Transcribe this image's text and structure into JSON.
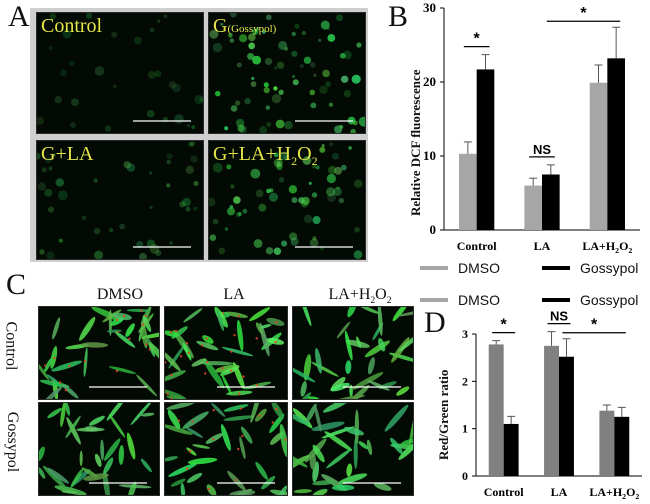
{
  "panels": {
    "A": {
      "letter": "A",
      "images": [
        {
          "label": "Control",
          "sublabel": "",
          "intensity": 0.15
        },
        {
          "label": "G",
          "sublabel": "(Gossypol)",
          "intensity": 0.9
        },
        {
          "label": "G+LA",
          "sublabel": "",
          "intensity": 0.35
        },
        {
          "label": "G+LA+H2O2",
          "sublabel": "",
          "intensity": 0.75
        }
      ]
    },
    "B": {
      "letter": "B"
    },
    "C": {
      "letter": "C",
      "col_headers": [
        "DMSO",
        "LA",
        "LA+H2O2"
      ],
      "row_headers": [
        "Control",
        "Gossypol"
      ]
    },
    "D": {
      "letter": "D"
    }
  },
  "legend": {
    "dmso": "DMSO",
    "gossypol": "Gossypol",
    "dmso_color": "#a6a6a6",
    "gossypol_color": "#000000"
  },
  "chart_data": [
    {
      "type": "bar",
      "panel": "B",
      "categories": [
        "Control",
        "LA",
        "LA+H2O2"
      ],
      "series": [
        {
          "name": "DMSO",
          "values": [
            10.3,
            6.0,
            19.9
          ],
          "errors": [
            1.6,
            1.0,
            2.4
          ],
          "color": "#a6a6a6"
        },
        {
          "name": "Gossypol",
          "values": [
            21.7,
            7.5,
            23.2
          ],
          "errors": [
            2.0,
            1.3,
            4.2
          ],
          "color": "#000000"
        }
      ],
      "ylabel": "Relative DCF fluorescence",
      "ylim": [
        0,
        30
      ],
      "yticks": [
        0,
        10,
        20,
        30
      ],
      "annotations": [
        {
          "text": "*",
          "from": [
            0,
            0
          ],
          "to": [
            0,
            1
          ]
        },
        {
          "text": "NS",
          "from": [
            1,
            0
          ],
          "to": [
            1,
            1
          ]
        },
        {
          "text": "*",
          "from": [
            1,
            1
          ],
          "to": [
            2,
            1
          ]
        }
      ]
    },
    {
      "type": "bar",
      "panel": "D",
      "categories": [
        "Control",
        "LA",
        "LA+H2O2"
      ],
      "series": [
        {
          "name": "DMSO",
          "values": [
            2.78,
            2.75,
            1.38
          ],
          "errors": [
            0.08,
            0.3,
            0.12
          ],
          "color": "#808080"
        },
        {
          "name": "Gossypol",
          "values": [
            1.1,
            2.52,
            1.25
          ],
          "errors": [
            0.16,
            0.38,
            0.2
          ],
          "color": "#000000"
        }
      ],
      "ylabel": "Red/Green ratio",
      "ylim": [
        0,
        3
      ],
      "yticks": [
        0,
        1,
        2,
        3
      ],
      "annotations": [
        {
          "text": "*",
          "from": [
            0,
            0
          ],
          "to": [
            0,
            1
          ]
        },
        {
          "text": "NS",
          "from": [
            1,
            0
          ],
          "to": [
            1,
            1
          ]
        },
        {
          "text": "*",
          "from": [
            1,
            1
          ],
          "to": [
            2,
            1
          ]
        }
      ]
    }
  ]
}
